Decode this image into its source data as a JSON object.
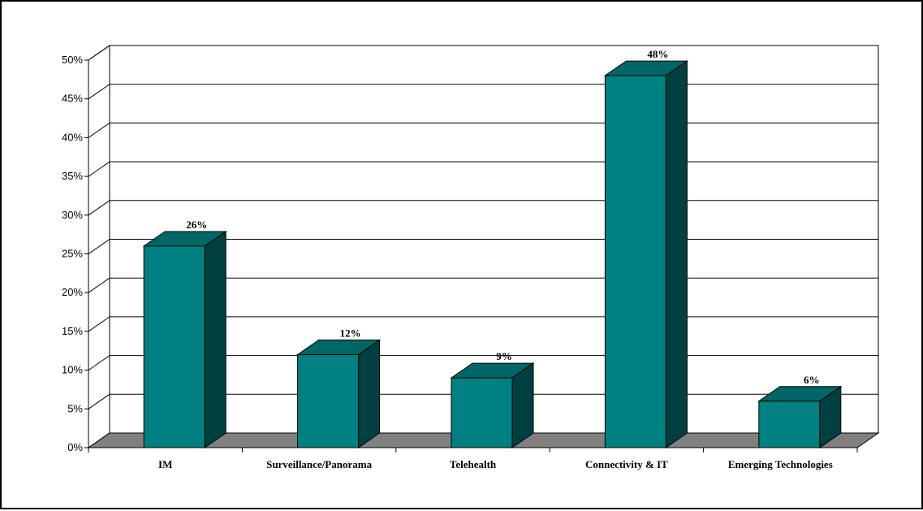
{
  "chart_data": {
    "type": "bar",
    "style": "3d-column",
    "categories": [
      "IM",
      "Surveillance/Panorama",
      "Telehealth",
      "Connectivity & IT",
      "Emerging Technologies"
    ],
    "values": [
      26,
      12,
      9,
      48,
      6
    ],
    "value_labels": [
      "26%",
      "12%",
      "9%",
      "48%",
      "6%"
    ],
    "y_ticks": [
      "0%",
      "5%",
      "10%",
      "15%",
      "20%",
      "25%",
      "30%",
      "35%",
      "40%",
      "45%",
      "50%"
    ],
    "ylim": [
      0,
      50
    ],
    "grid": true,
    "legend": "none",
    "colors": {
      "bar_front": "#008080",
      "bar_top": "#006666",
      "bar_side": "#004040",
      "floor": "#808080",
      "grid": "#000000"
    }
  }
}
